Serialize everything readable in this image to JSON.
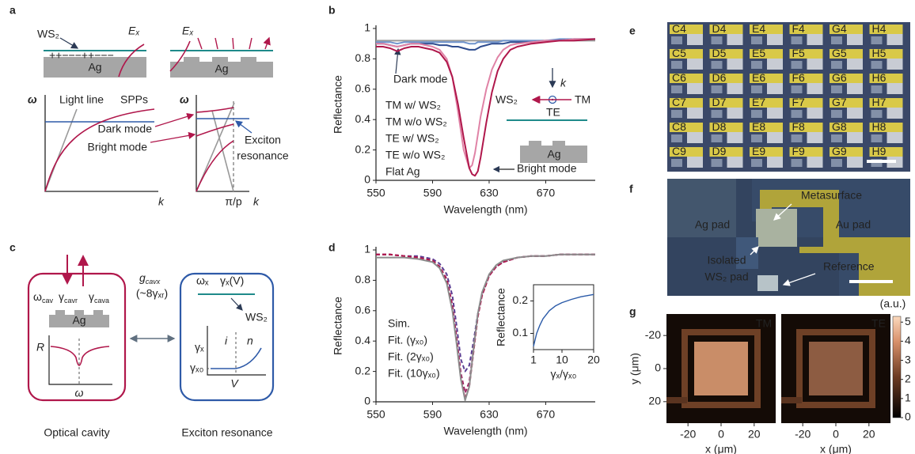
{
  "panel_labels": [
    "a",
    "b",
    "c",
    "d",
    "e",
    "f",
    "g"
  ],
  "panel_a": {
    "ws2": "WS₂",
    "ex_left": "Eₓ",
    "ex_right": "Eₓ",
    "charges": "++−−−++−−−",
    "ag_left": "Ag",
    "ag_right": "Ag",
    "omega_left": "ω",
    "k_left": "k",
    "light_line": "Light line",
    "spps": "SPPs",
    "omega_right": "ω",
    "k_right": "k",
    "pi_p": "π/p",
    "dark_mode": "Dark mode",
    "bright_mode": "Bright mode",
    "exciton_resonance": [
      "Exciton",
      "resonance"
    ]
  },
  "chart_data": [
    {
      "type": "line",
      "x_label": "Wavelength (nm)",
      "y_label": "Reflectance",
      "xlim": [
        550,
        705
      ],
      "xticks": [
        550,
        590,
        630,
        670
      ],
      "ylim": [
        0,
        1
      ],
      "yticks": [
        0,
        0.2,
        0.4,
        0.6,
        0.8,
        1
      ],
      "x": [
        550,
        555,
        560,
        565,
        570,
        575,
        580,
        585,
        590,
        595,
        600,
        604,
        608,
        612,
        616,
        618,
        620,
        622,
        624,
        628,
        632,
        636,
        640,
        645,
        650,
        660,
        670,
        680,
        690,
        705
      ],
      "series": [
        {
          "name": "TM w/ WS₂",
          "color": "#b0174b",
          "values": [
            0.88,
            0.88,
            0.87,
            0.85,
            0.87,
            0.88,
            0.88,
            0.87,
            0.86,
            0.84,
            0.78,
            0.68,
            0.5,
            0.28,
            0.08,
            0.04,
            0.03,
            0.06,
            0.15,
            0.38,
            0.58,
            0.72,
            0.8,
            0.86,
            0.88,
            0.9,
            0.91,
            0.92,
            0.92,
            0.93
          ]
        },
        {
          "name": "TM w/o WS₂",
          "color": "#e083a6",
          "values": [
            0.9,
            0.9,
            0.89,
            0.88,
            0.89,
            0.9,
            0.9,
            0.89,
            0.88,
            0.86,
            0.8,
            0.68,
            0.45,
            0.2,
            0.08,
            0.1,
            0.18,
            0.3,
            0.42,
            0.6,
            0.73,
            0.81,
            0.86,
            0.89,
            0.9,
            0.91,
            0.92,
            0.92,
            0.93,
            0.93
          ]
        },
        {
          "name": "TE w/ WS₂",
          "color": "#2d4b8e",
          "values": [
            0.9,
            0.9,
            0.89,
            0.88,
            0.89,
            0.9,
            0.9,
            0.9,
            0.9,
            0.89,
            0.89,
            0.88,
            0.88,
            0.87,
            0.86,
            0.86,
            0.86,
            0.87,
            0.88,
            0.89,
            0.9,
            0.9,
            0.9,
            0.91,
            0.91,
            0.91,
            0.92,
            0.92,
            0.93,
            0.93
          ]
        },
        {
          "name": "TE w/o WS₂",
          "color": "#6f93cc",
          "values": [
            0.91,
            0.91,
            0.91,
            0.9,
            0.91,
            0.91,
            0.91,
            0.91,
            0.91,
            0.91,
            0.91,
            0.91,
            0.91,
            0.91,
            0.9,
            0.9,
            0.9,
            0.91,
            0.91,
            0.91,
            0.91,
            0.91,
            0.92,
            0.92,
            0.92,
            0.92,
            0.92,
            0.93,
            0.93,
            0.93
          ]
        },
        {
          "name": "Flat Ag",
          "color": "#9a9a9a",
          "values": [
            0.92,
            0.92,
            0.92,
            0.92,
            0.92,
            0.92,
            0.92,
            0.92,
            0.92,
            0.92,
            0.92,
            0.92,
            0.92,
            0.92,
            0.92,
            0.92,
            0.92,
            0.92,
            0.92,
            0.92,
            0.92,
            0.92,
            0.92,
            0.92,
            0.92,
            0.92,
            0.92,
            0.92,
            0.92,
            0.92
          ]
        }
      ],
      "annotations": [
        "Dark mode",
        "Bright mode"
      ],
      "inset_labels": {
        "k": "k",
        "ws2": "WS₂",
        "tm": "TM",
        "te": "TE",
        "ag": "Ag"
      }
    },
    {
      "type": "line",
      "x_label": "Wavelength (nm)",
      "y_label": "Reflectance",
      "xlim": [
        550,
        705
      ],
      "xticks": [
        550,
        590,
        630,
        670
      ],
      "ylim": [
        0,
        1
      ],
      "yticks": [
        0,
        0.2,
        0.4,
        0.6,
        0.8,
        1
      ],
      "x": [
        550,
        560,
        570,
        580,
        590,
        595,
        600,
        604,
        607,
        610,
        613,
        616,
        619,
        622,
        625,
        630,
        635,
        640,
        650,
        660,
        670,
        680,
        690,
        705
      ],
      "series": [
        {
          "name": "Sim.",
          "color": "#8c8c8c",
          "style": "solid",
          "values": [
            0.95,
            0.95,
            0.95,
            0.94,
            0.92,
            0.88,
            0.78,
            0.6,
            0.38,
            0.15,
            0.01,
            0.1,
            0.35,
            0.58,
            0.72,
            0.84,
            0.9,
            0.93,
            0.95,
            0.96,
            0.96,
            0.97,
            0.97,
            0.97
          ]
        },
        {
          "name": "Fit. (γₓ₀)",
          "color": "#b0174b",
          "style": "dashed",
          "values": [
            0.97,
            0.97,
            0.96,
            0.95,
            0.93,
            0.89,
            0.8,
            0.62,
            0.4,
            0.16,
            0.02,
            0.1,
            0.33,
            0.56,
            0.7,
            0.83,
            0.89,
            0.92,
            0.95,
            0.96,
            0.96,
            0.97,
            0.97,
            0.97
          ]
        },
        {
          "name": "Fit. (2γₓ₀)",
          "color": "#9c2263",
          "style": "dashed",
          "values": [
            0.97,
            0.97,
            0.96,
            0.95,
            0.93,
            0.89,
            0.81,
            0.64,
            0.42,
            0.19,
            0.06,
            0.13,
            0.35,
            0.57,
            0.7,
            0.83,
            0.89,
            0.92,
            0.95,
            0.96,
            0.96,
            0.97,
            0.97,
            0.97
          ]
        },
        {
          "name": "Fit. (10γₓ₀)",
          "color": "#5b3d92",
          "style": "dashed",
          "values": [
            0.97,
            0.97,
            0.96,
            0.96,
            0.94,
            0.91,
            0.84,
            0.7,
            0.5,
            0.28,
            0.2,
            0.24,
            0.4,
            0.58,
            0.71,
            0.83,
            0.89,
            0.92,
            0.95,
            0.96,
            0.96,
            0.97,
            0.97,
            0.97
          ]
        }
      ]
    },
    {
      "type": "line",
      "x_label": "γₓ/γₓ₀",
      "y_label": "Reflectance",
      "xlim": [
        1,
        20
      ],
      "xticks": [
        1,
        10,
        20
      ],
      "ylim": [
        0.05,
        0.25
      ],
      "yticks": [
        0.1,
        0.2
      ],
      "x": [
        1,
        2,
        3,
        4,
        6,
        8,
        10,
        13,
        16,
        20
      ],
      "series": [
        {
          "color": "#2a5aa8",
          "style": "solid",
          "values": [
            0.06,
            0.1,
            0.125,
            0.145,
            0.17,
            0.185,
            0.195,
            0.205,
            0.213,
            0.22
          ]
        }
      ]
    }
  ],
  "panel_c": {
    "omega_cav": {
      "base": "ω",
      "sub": "cav"
    },
    "gamma_cavr": {
      "base": "γ",
      "sub": "cavr"
    },
    "gamma_cava": {
      "base": "γ",
      "sub": "cava"
    },
    "ag": "Ag",
    "r": "R",
    "omega": "ω",
    "optical_cavity": "Optical cavity",
    "g_cavx": {
      "base": "g",
      "sub": "cavx"
    },
    "coupling": "(~8γₓᵣ)",
    "omega_x": "ωₓ",
    "gamma_x_v": "γₓ(V)",
    "ws2": "WS₂",
    "gamma_x": "γₓ",
    "i": "i",
    "n": "n",
    "gamma_x0": "γₓ₀",
    "v": "V",
    "exciton_resonance": "Exciton resonance"
  },
  "panel_e": {
    "chip_labels": [
      [
        "C4",
        "D4",
        "E4",
        "F4",
        "G4",
        "H4"
      ],
      [
        "C5",
        "D5",
        "E5",
        "F5",
        "G5",
        "H5"
      ],
      [
        "C6",
        "D6",
        "E6",
        "F6",
        "G6",
        "H6"
      ],
      [
        "C7",
        "D7",
        "E7",
        "F7",
        "G7",
        "H7"
      ],
      [
        "C8",
        "D8",
        "E8",
        "F8",
        "G8",
        "H8"
      ],
      [
        "C9",
        "D9",
        "E9",
        "F9",
        "G9",
        "H9"
      ]
    ]
  },
  "panel_f": {
    "metasurface": "Metasurface",
    "ag_pad": "Ag pad",
    "au_pad": "Au pad",
    "isolated_ws2_pad": [
      "Isolated",
      "WS₂ pad"
    ],
    "reference": "Reference"
  },
  "panel_g": {
    "maps": [
      "TM",
      "TE"
    ],
    "xlim": [
      -33,
      33
    ],
    "ylim": [
      -33,
      33
    ],
    "xticks": [
      -20,
      0,
      20
    ],
    "yticks": [
      -20,
      0,
      20
    ],
    "x_label": "x (μm)",
    "y_label": "y (μm)",
    "colorbar_label": "(a.u.)",
    "colorbar_lim": [
      0,
      5.3
    ],
    "colorbar_ticks": [
      0,
      1,
      2,
      3,
      4,
      5
    ]
  }
}
